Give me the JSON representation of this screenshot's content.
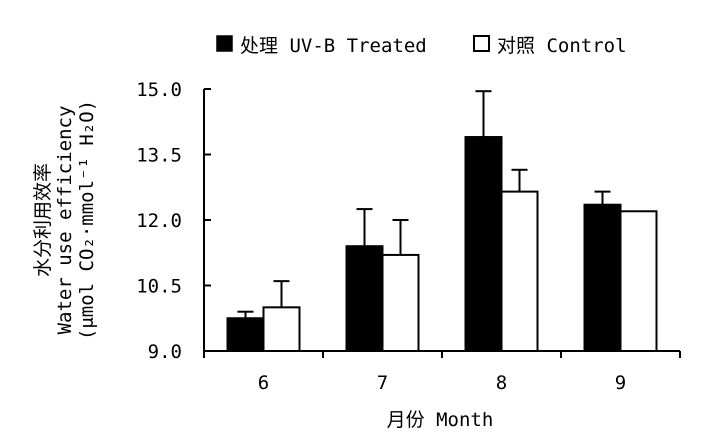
{
  "chart_data": {
    "type": "bar",
    "xlabel": "月份 Month",
    "ylabel_cn": "水分利用效率",
    "ylabel_en": "Water use efficiency",
    "ylabel_unit": "(μmol CO₂·mmol⁻¹ H₂O)",
    "categories": [
      "6",
      "7",
      "8",
      "9"
    ],
    "yticks": [
      "15.0",
      "13.5",
      "12.0",
      "10.5",
      "9.0"
    ],
    "ylim": [
      9.0,
      15.0
    ],
    "legend_position": "top",
    "grid": false,
    "series": [
      {
        "name": "处理 UV-B Treated",
        "fill": "#000000",
        "values": [
          9.75,
          11.4,
          13.9,
          12.35
        ],
        "errors": [
          0.15,
          0.85,
          1.05,
          0.3
        ]
      },
      {
        "name": "对照 Control",
        "fill": "#ffffff",
        "values": [
          10.0,
          11.2,
          12.65,
          12.2
        ],
        "errors": [
          0.6,
          0.8,
          0.5,
          0.0
        ]
      }
    ]
  }
}
